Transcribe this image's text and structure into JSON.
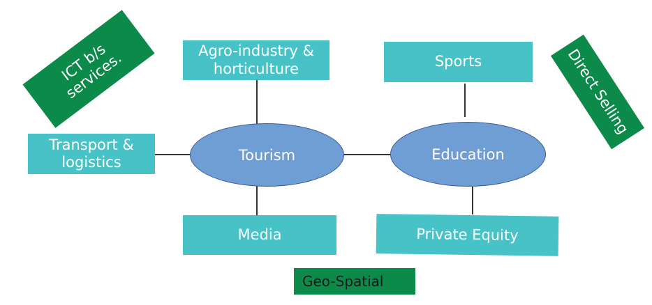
{
  "colors": {
    "teal_box": "#47c3c8",
    "green_box": "#0c8a4a",
    "ellipse_fill": "#6f9ed5",
    "ellipse_border": "#3a5b93",
    "connector": "#333333"
  },
  "hubs": {
    "tourism": "Tourism",
    "education": "Education"
  },
  "boxes": {
    "agro": "Agro-industry & horticulture",
    "transport": "Transport & logistics",
    "media": "Media",
    "sports": "Sports",
    "private_equity": "Private Equity"
  },
  "tags": {
    "ict": "ICT b/s services.",
    "direct_selling": "Direct Selling",
    "geo_spatial": "Geo-Spatial"
  }
}
